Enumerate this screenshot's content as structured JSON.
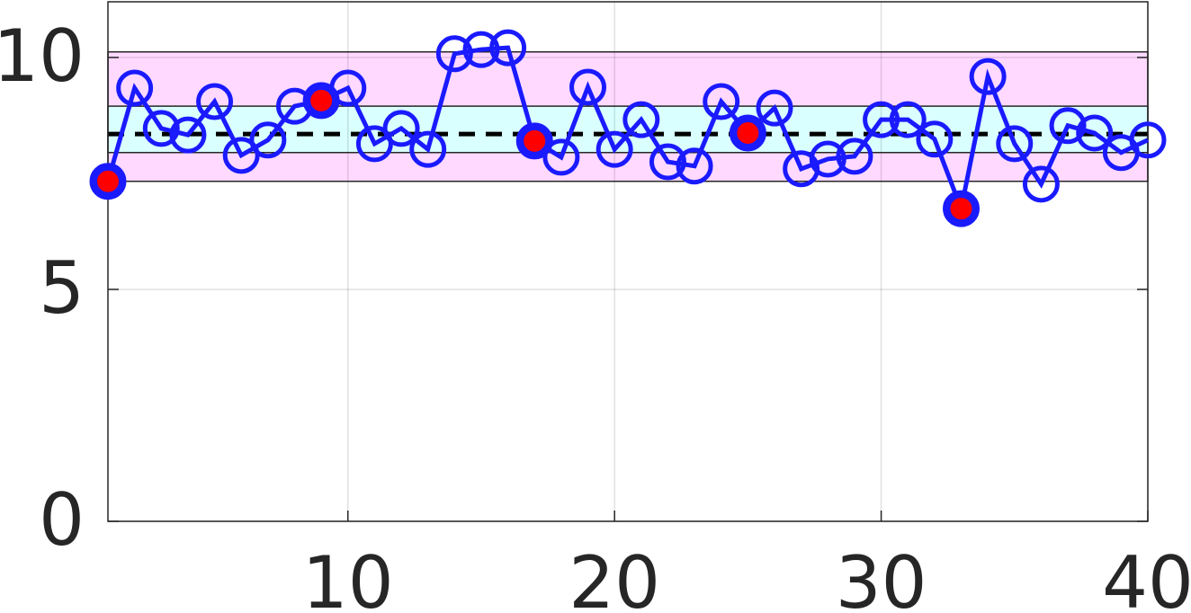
{
  "chart_data": {
    "type": "line",
    "x": [
      1,
      2,
      3,
      4,
      5,
      6,
      7,
      8,
      9,
      10,
      11,
      12,
      13,
      14,
      15,
      16,
      17,
      18,
      19,
      20,
      21,
      22,
      23,
      24,
      25,
      26,
      27,
      28,
      29,
      30,
      31,
      32,
      33,
      34,
      35,
      36,
      37,
      38,
      39,
      40
    ],
    "series": [
      {
        "color": "#1a1aff",
        "marker": "open-circle",
        "values": [
          7.33,
          9.34,
          8.47,
          8.33,
          9.05,
          7.89,
          8.22,
          8.95,
          9.07,
          9.34,
          8.14,
          8.47,
          8.02,
          10.08,
          10.17,
          10.21,
          8.2,
          7.85,
          9.36,
          8.02,
          8.66,
          7.75,
          7.66,
          9.05,
          8.37,
          8.91,
          7.6,
          7.81,
          7.87,
          8.66,
          8.66,
          8.24,
          6.74,
          9.59,
          8.14,
          7.27,
          8.53,
          8.37,
          7.95,
          8.22
        ]
      },
      {
        "color": "#ff0000",
        "marker": "filled-circle",
        "values": [
          7.33,
          null,
          null,
          null,
          null,
          null,
          null,
          null,
          9.07,
          null,
          null,
          null,
          null,
          null,
          null,
          null,
          8.2,
          null,
          null,
          null,
          null,
          null,
          null,
          null,
          8.37,
          null,
          null,
          null,
          null,
          null,
          null,
          null,
          6.74,
          null,
          null,
          null,
          null,
          null,
          null,
          null
        ]
      }
    ],
    "bands": [
      {
        "ylim": [
          7.33,
          10.12
        ],
        "color": "#ffd9ff"
      },
      {
        "ylim": [
          7.95,
          8.95
        ],
        "color": "#d9ffff"
      }
    ],
    "mean_line": 8.35,
    "xlim": [
      1,
      40
    ],
    "ylim": [
      0,
      11.2
    ],
    "xticks": [
      10,
      20,
      30,
      40
    ],
    "yticks": [
      0,
      5,
      10
    ],
    "grid": true
  }
}
